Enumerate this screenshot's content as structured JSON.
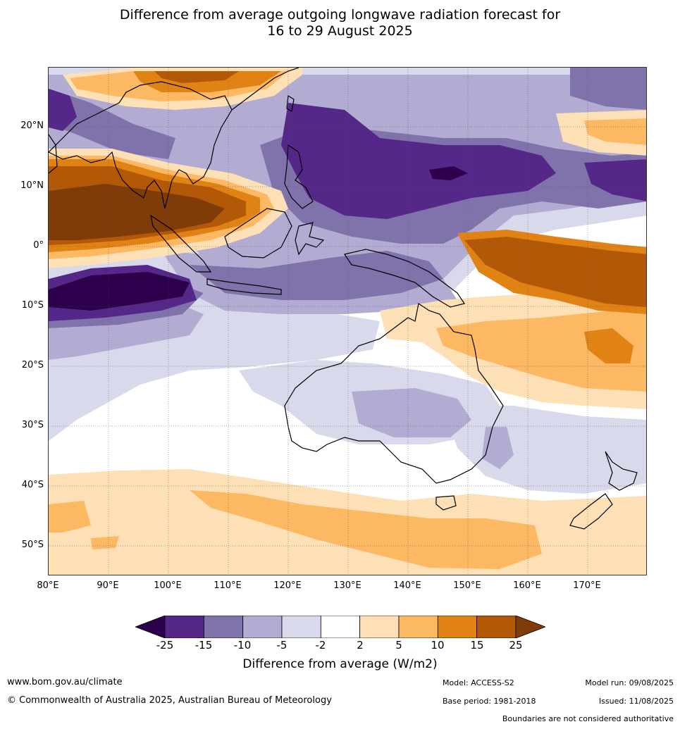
{
  "title_line1": "Difference from average outgoing longwave radiation forecast for",
  "title_line2": "16 to 29 August 2025",
  "lat_labels": [
    "20°N",
    "10°N",
    "0°",
    "10°S",
    "20°S",
    "30°S",
    "40°S",
    "50°S"
  ],
  "lon_labels": [
    "80°E",
    "90°E",
    "100°E",
    "110°E",
    "120°E",
    "130°E",
    "140°E",
    "150°E",
    "160°E",
    "170°E"
  ],
  "colorbar": {
    "ticks": [
      "-25",
      "-15",
      "-10",
      "-5",
      "-2",
      "2",
      "5",
      "10",
      "15",
      "25"
    ],
    "colors": [
      "#2d004b",
      "#542788",
      "#8073ac",
      "#b2abd2",
      "#d8daeb",
      "#ffffff",
      "#fee0b6",
      "#fdb863",
      "#e08214",
      "#b35806",
      "#7f3b08"
    ],
    "title": "Difference from average (W/m2)"
  },
  "footer": {
    "website": "www.bom.gov.au/climate",
    "copyright": "© Commonwealth of Australia 2025, Australian Bureau of Meteorology",
    "model": "Model: ACCESS-S2",
    "model_run": "Model run: 09/08/2025",
    "base_period": "Base period: 1981-2018",
    "issued": "Issued: 11/08/2025",
    "disclaimer": "Boundaries are not considered authoritative"
  }
}
